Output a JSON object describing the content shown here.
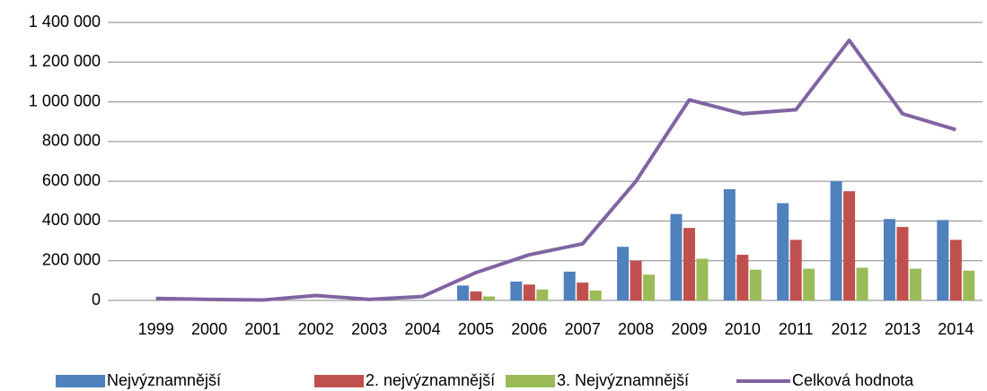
{
  "chart_data": {
    "type": "bar_line",
    "categories": [
      "1999",
      "2000",
      "2001",
      "2002",
      "2003",
      "2004",
      "2005",
      "2006",
      "2007",
      "2008",
      "2009",
      "2010",
      "2011",
      "2012",
      "2013",
      "2014"
    ],
    "series": [
      {
        "name": "Nejvýznamnější",
        "type": "bar",
        "color": "#4f81bd",
        "values": [
          0,
          0,
          0,
          0,
          0,
          0,
          75000,
          95000,
          145000,
          270000,
          435000,
          560000,
          490000,
          600000,
          410000,
          405000
        ]
      },
      {
        "name": "2. nejvýznamnější",
        "type": "bar",
        "color": "#c0504d",
        "values": [
          0,
          0,
          0,
          0,
          0,
          0,
          45000,
          80000,
          90000,
          200000,
          365000,
          230000,
          305000,
          550000,
          370000,
          305000
        ]
      },
      {
        "name": "3. Nejvýznamnější",
        "type": "bar",
        "color": "#9bbb59",
        "values": [
          0,
          0,
          0,
          0,
          0,
          0,
          20000,
          55000,
          50000,
          130000,
          210000,
          155000,
          160000,
          165000,
          160000,
          150000
        ]
      },
      {
        "name": "Celková hodnota",
        "type": "line",
        "color": "#8064a2",
        "values": [
          10000,
          5000,
          2000,
          25000,
          5000,
          20000,
          140000,
          230000,
          285000,
          600000,
          1010000,
          940000,
          960000,
          1310000,
          940000,
          860000
        ]
      }
    ],
    "ylim": [
      0,
      1400000
    ],
    "yticks": [
      0,
      {
        "value": 200000,
        "label": "200 000"
      },
      {
        "value": 400000,
        "label": "400 000"
      },
      {
        "value": 600000,
        "label": "600 000"
      },
      {
        "value": 800000,
        "label": "800 000"
      },
      {
        "value": 1000000,
        "label": "1 000 000"
      },
      {
        "value": 1200000,
        "label": "1 200 000"
      },
      {
        "value": 1400000,
        "label": "1 400 000"
      }
    ],
    "grid": true,
    "legend": "bottom"
  }
}
